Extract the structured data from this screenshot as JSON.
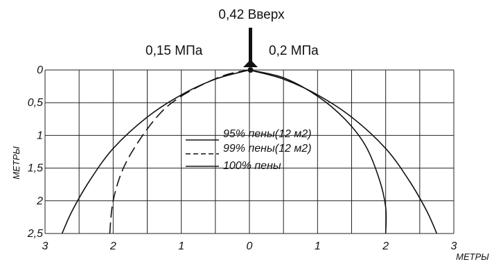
{
  "top_labels": {
    "upward": "0,42 Вверх",
    "left_pressure": "0,15 МПа",
    "right_pressure": "0,2 МПа"
  },
  "chart_data": {
    "type": "line",
    "title": "",
    "xlabel": "МЕТРЫ",
    "ylabel": "МЕТРЫ",
    "xlim": [
      -3,
      3
    ],
    "ylim": [
      0,
      2.5
    ],
    "y_inverted": true,
    "grid": true,
    "legend_position": "center",
    "x_tick_labels": [
      {
        "value": -3,
        "label": "3"
      },
      {
        "value": -2,
        "label": "2"
      },
      {
        "value": -1,
        "label": "1"
      },
      {
        "value": 0,
        "label": "0"
      },
      {
        "value": 1,
        "label": "1"
      },
      {
        "value": 2,
        "label": "2"
      },
      {
        "value": 3,
        "label": "3"
      }
    ],
    "y_tick_labels": [
      {
        "value": 0,
        "label": "0"
      },
      {
        "value": 0.5,
        "label": "0,5"
      },
      {
        "value": 1,
        "label": "1"
      },
      {
        "value": 1.5,
        "label": "1,5"
      },
      {
        "value": 2,
        "label": "2"
      },
      {
        "value": 2.5,
        "label": "2,5"
      }
    ],
    "series": [
      {
        "name": "95% пены(12 м2)",
        "style": "solid",
        "x": [
          -2.75,
          -2.6,
          -2.35,
          -2.0,
          -1.5,
          -1.0,
          -0.5,
          0
        ],
        "y": [
          2.5,
          2.15,
          1.7,
          1.2,
          0.72,
          0.38,
          0.14,
          0
        ]
      },
      {
        "name": "99% пены(12 м2)",
        "style": "dashed",
        "x": [
          -2.05,
          -2.0,
          -1.85,
          -1.6,
          -1.3,
          -1.0,
          -0.6,
          -0.3,
          0
        ],
        "y": [
          2.5,
          2.0,
          1.5,
          1.05,
          0.65,
          0.4,
          0.18,
          0.06,
          0
        ]
      },
      {
        "name": "100% пены",
        "style": "solid",
        "x": [
          0,
          0.5,
          1.0,
          1.4,
          1.7,
          1.9,
          2.0,
          2.0
        ],
        "y": [
          0,
          0.12,
          0.4,
          0.75,
          1.15,
          1.65,
          2.1,
          2.5
        ]
      },
      {
        "name": "",
        "style": "solid",
        "x": [
          0,
          0.5,
          1.0,
          1.5,
          2.0,
          2.35,
          2.6,
          2.75
        ],
        "y": [
          0,
          0.14,
          0.38,
          0.72,
          1.2,
          1.7,
          2.15,
          2.5
        ]
      }
    ]
  },
  "colors": {
    "ink": "#111111",
    "background": "#ffffff"
  }
}
